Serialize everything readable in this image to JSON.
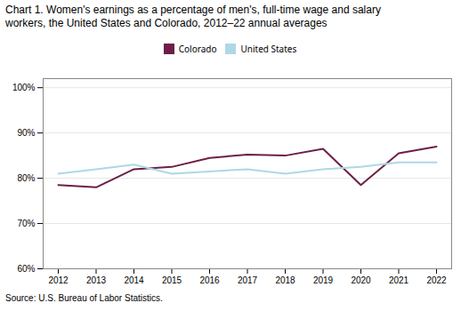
{
  "chart_data": {
    "type": "line",
    "title": "Chart 1. Women's earnings as a percentage of men's, full-time wage and salary\nworkers, the United States and Colorado, 2012–22  annual averages",
    "caption": "Source:  U.S. Bureau of Labor Statistics.",
    "x": [
      2012,
      2013,
      2014,
      2015,
      2016,
      2017,
      2018,
      2019,
      2020,
      2021,
      2022
    ],
    "series": [
      {
        "name": "Colorado",
        "color": "#6d1f47",
        "values": [
          78.5,
          78.0,
          82.0,
          82.5,
          84.5,
          85.2,
          85.0,
          86.5,
          78.5,
          85.5,
          87.0
        ]
      },
      {
        "name": "United States",
        "color": "#add8e6",
        "values": [
          81.0,
          82.0,
          83.0,
          81.0,
          81.5,
          82.0,
          81.0,
          82.0,
          82.5,
          83.5,
          83.5
        ]
      }
    ],
    "xlim": [
      2011.6,
      2022.4
    ],
    "xticks": [
      2012,
      2013,
      2014,
      2015,
      2016,
      2017,
      2018,
      2019,
      2020,
      2021,
      2022
    ],
    "ylim": [
      60,
      102
    ],
    "yticks": [
      {
        "value": 60,
        "label": "60%"
      },
      {
        "value": 70,
        "label": "70%"
      },
      {
        "value": 80,
        "label": "80%"
      },
      {
        "value": 90,
        "label": "90%"
      },
      {
        "value": 100,
        "label": "100%"
      }
    ],
    "grid": "y",
    "legend": "top"
  }
}
